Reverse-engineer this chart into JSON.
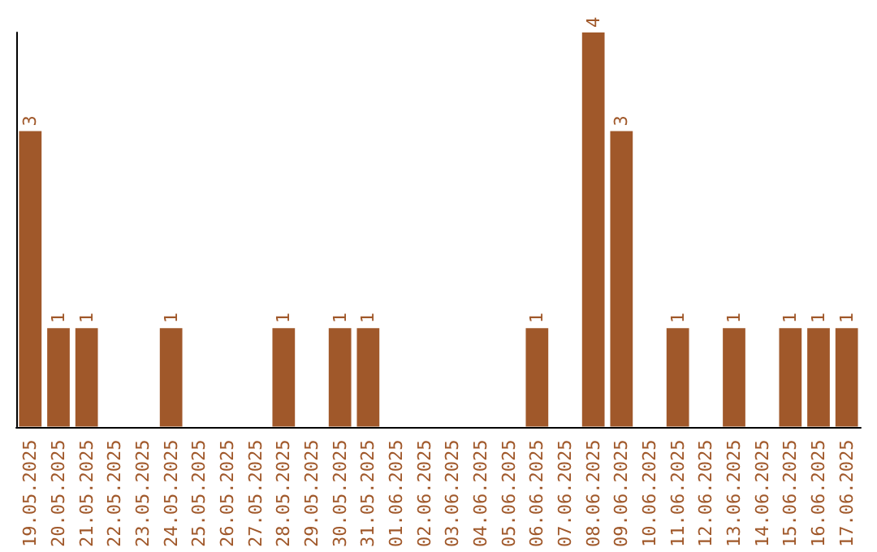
{
  "chart_data": {
    "type": "bar",
    "categories": [
      "19.05.2025",
      "20.05.2025",
      "21.05.2025",
      "22.05.2025",
      "23.05.2025",
      "24.05.2025",
      "25.05.2025",
      "26.05.2025",
      "27.05.2025",
      "28.05.2025",
      "29.05.2025",
      "30.05.2025",
      "31.05.2025",
      "01.06.2025",
      "02.06.2025",
      "03.06.2025",
      "04.06.2025",
      "05.06.2025",
      "06.06.2025",
      "07.06.2025",
      "08.06.2025",
      "09.06.2025",
      "10.06.2025",
      "11.06.2025",
      "12.06.2025",
      "13.06.2025",
      "14.06.2025",
      "15.06.2025",
      "16.06.2025",
      "17.06.2025"
    ],
    "values": [
      3,
      1,
      1,
      0,
      0,
      1,
      0,
      0,
      0,
      1,
      0,
      1,
      1,
      0,
      0,
      0,
      0,
      0,
      1,
      0,
      4,
      3,
      0,
      1,
      0,
      1,
      0,
      1,
      1,
      1
    ],
    "value_labels": [
      "3",
      "1",
      "1",
      null,
      null,
      "1",
      null,
      null,
      null,
      "1",
      null,
      "1",
      "1",
      null,
      null,
      null,
      null,
      null,
      "1",
      null,
      "4",
      "3",
      null,
      "1",
      null,
      "1",
      null,
      "1",
      "1",
      "1"
    ],
    "color": "#a0582a"
  }
}
